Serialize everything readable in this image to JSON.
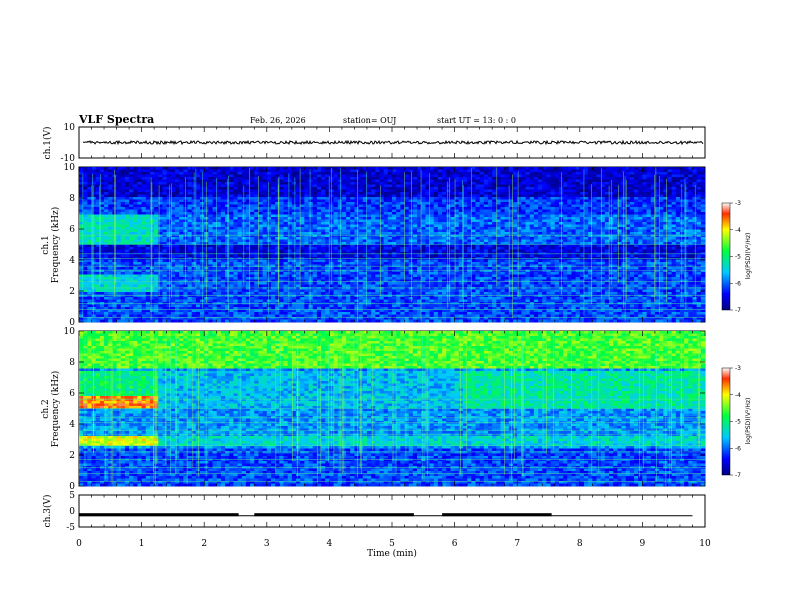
{
  "header": {
    "title": "VLF Spectra",
    "date": "Feb. 26, 2026",
    "station": "station= OUJ",
    "start": "start  UT =   13: 0   : 0"
  },
  "chart_data": {
    "type": "heatmap",
    "title": "VLF Spectra",
    "xlabel": "Time (min)",
    "x_ticks": [
      "0",
      "1",
      "2",
      "3",
      "4",
      "5",
      "6",
      "7",
      "8",
      "9",
      "10"
    ],
    "xlim": [
      0,
      10
    ],
    "panels": [
      {
        "id": "ch1v",
        "ylabel": "ch.1(V)",
        "ylim": [
          -10,
          10
        ],
        "y_ticks": [
          "10",
          "-10"
        ],
        "kind": "waveform",
        "level": 0
      },
      {
        "id": "ch1spec",
        "ylabel": "ch.1\nFrequency (kHz)",
        "ylim": [
          0,
          10
        ],
        "y_ticks": [
          "0",
          "2",
          "4",
          "6",
          "8",
          "10"
        ],
        "kind": "spectrogram"
      },
      {
        "id": "ch2spec",
        "ylabel": "ch.2\nFrequency (kHz)",
        "ylim": [
          0,
          10
        ],
        "y_ticks": [
          "0",
          "2",
          "4",
          "6",
          "8",
          "10"
        ],
        "kind": "spectrogram"
      },
      {
        "id": "ch3v",
        "ylabel": "ch.3(V)",
        "ylim": [
          -5,
          5
        ],
        "y_ticks": [
          "5",
          "0",
          "-5"
        ],
        "kind": "step",
        "segments": [
          [
            0,
            2.55
          ],
          [
            2.8,
            5.35
          ],
          [
            5.8,
            7.55
          ]
        ],
        "high_level": -1,
        "low_level": -1.5
      }
    ],
    "colorbar": {
      "label": "log(PSD)(V²/Hz)",
      "range": [
        -7,
        -3
      ],
      "ticks": [
        "-3",
        "-4",
        "-5",
        "-6",
        "-7"
      ]
    }
  }
}
